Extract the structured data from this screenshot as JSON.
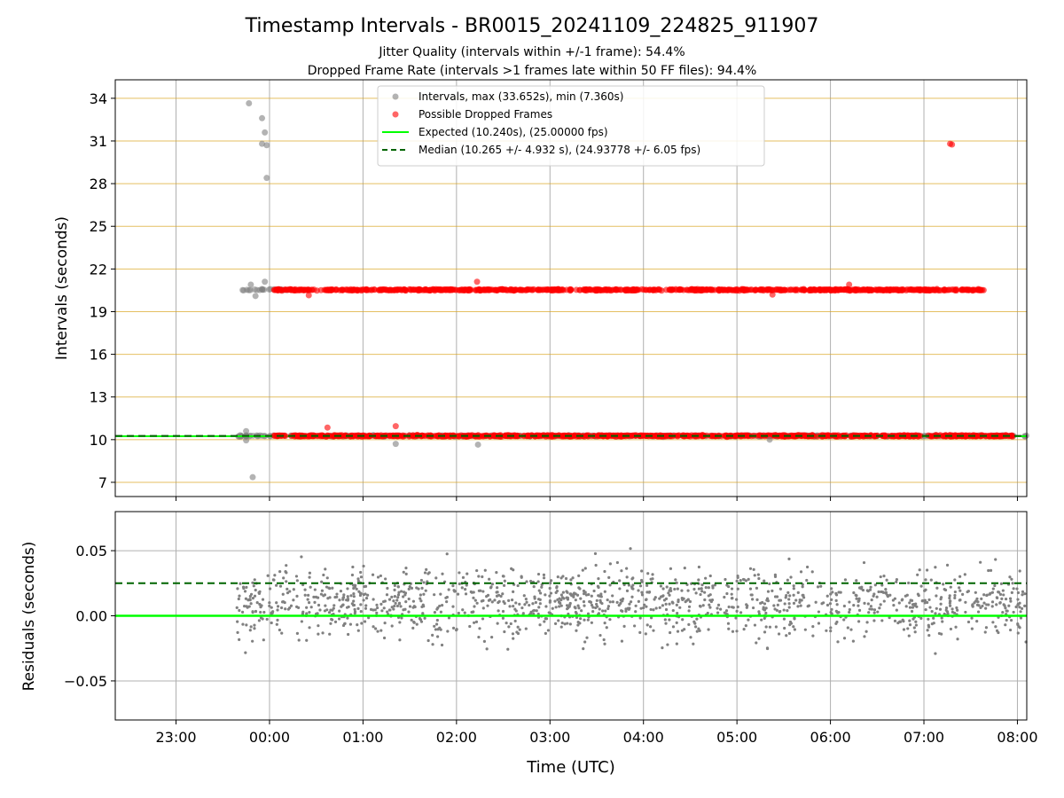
{
  "title": "Timestamp Intervals - BR0015_20241109_224825_911907",
  "subtitle1": "Jitter Quality (intervals within +/-1 frame): 54.4%",
  "subtitle2": "Dropped Frame Rate (intervals >1 frames late within 50 FF files): 94.4%",
  "colors": {
    "intervals": "#808080",
    "dropped": "#ff0000",
    "expected": "#00ff00",
    "median": "#006400",
    "hgrid_top": "#daa520",
    "grid": "#b0b0b0"
  },
  "chart_data": [
    {
      "type": "scatter",
      "ylabel": "Intervals (seconds)",
      "ylim": [
        6.0,
        35.3
      ],
      "xlim_hours": [
        -1.65,
        8.1
      ],
      "ytick_labels": [
        "7",
        "10",
        "13",
        "16",
        "19",
        "22",
        "25",
        "28",
        "31",
        "34"
      ],
      "yticks": [
        7,
        10,
        13,
        16,
        19,
        22,
        25,
        28,
        31,
        34
      ],
      "legend_position": "upper center",
      "legend": [
        {
          "label": "Intervals, max (33.652s), min (7.360s)",
          "kind": "gray-dot"
        },
        {
          "label": "Possible Dropped Frames",
          "kind": "red-dot"
        },
        {
          "label": "Expected (10.240s), (25.00000 fps)",
          "kind": "green-line"
        },
        {
          "label": "Median (10.265 +/- 4.932 s), (24.93778 +/- 6.05 fps)",
          "kind": "green-dashed"
        }
      ],
      "expected": 10.24,
      "median": 10.265,
      "series": [
        {
          "name": "Intervals, max (33.652s), min (7.360s)",
          "bands": [
            {
              "y": 10.265,
              "x_start_hours": -0.35,
              "x_end_hours": 8.1
            },
            {
              "y": 20.53,
              "x_start_hours": -0.35,
              "x_end_hours": 0.2
            }
          ],
          "outliers": [
            [
              -0.22,
              33.65
            ],
            [
              -0.08,
              32.6
            ],
            [
              -0.05,
              31.6
            ],
            [
              -0.03,
              30.7
            ],
            [
              -0.08,
              30.8
            ],
            [
              -0.03,
              28.4
            ],
            [
              -0.18,
              7.36
            ],
            [
              -0.25,
              9.95
            ],
            [
              -0.25,
              10.6
            ],
            [
              -0.2,
              20.9
            ],
            [
              -0.05,
              21.1
            ],
            [
              -0.15,
              20.1
            ],
            [
              2.23,
              9.65
            ],
            [
              1.35,
              9.7
            ],
            [
              5.35,
              10.0
            ]
          ]
        },
        {
          "name": "Possible Dropped Frames",
          "bands": [
            {
              "y": 10.27,
              "x_start_hours": 0.05,
              "x_end_hours": 7.95
            },
            {
              "y": 20.53,
              "x_start_hours": 0.05,
              "x_end_hours": 7.65
            }
          ],
          "outliers": [
            [
              7.3,
              30.75
            ],
            [
              7.28,
              30.8
            ],
            [
              2.22,
              21.1
            ],
            [
              1.35,
              10.95
            ],
            [
              0.62,
              10.85
            ],
            [
              6.2,
              20.9
            ],
            [
              0.42,
              20.15
            ],
            [
              5.38,
              20.2
            ]
          ]
        }
      ]
    },
    {
      "type": "scatter",
      "xlabel": "Time (UTC)",
      "ylabel": "Residuals (seconds)",
      "ylim": [
        -0.08,
        0.08
      ],
      "xlim_hours": [
        -1.65,
        8.1
      ],
      "ytick_labels": [
        "−0.05",
        "0.00",
        "0.05"
      ],
      "yticks": [
        -0.05,
        0.0,
        0.05
      ],
      "xtick_labels": [
        "23:00",
        "00:00",
        "01:00",
        "02:00",
        "03:00",
        "04:00",
        "05:00",
        "06:00",
        "07:00",
        "08:00"
      ],
      "xticks_hours": [
        -1,
        0,
        1,
        2,
        3,
        4,
        5,
        6,
        7,
        8
      ],
      "expected_residual": 0.0,
      "median_residual": 0.025,
      "series": [
        {
          "name": "Residuals",
          "x_range_hours": [
            -0.35,
            8.1
          ],
          "center": 0.01,
          "spread": 0.04,
          "count": 1400
        }
      ]
    }
  ]
}
